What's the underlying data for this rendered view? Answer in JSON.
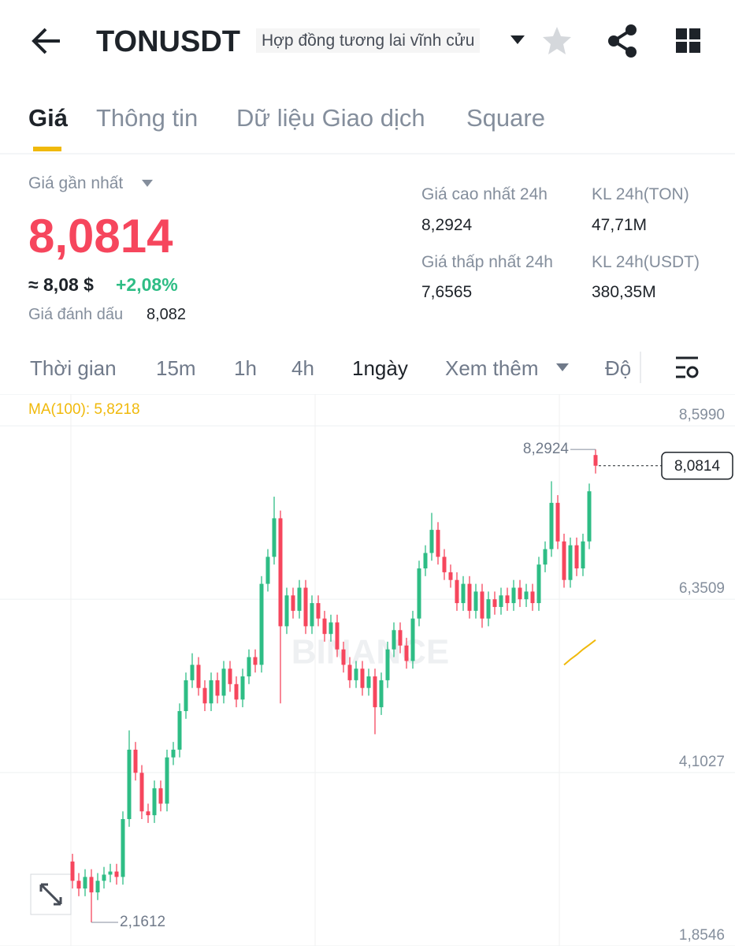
{
  "header": {
    "symbol": "TONUSDT",
    "contract_type": "Hợp đồng tương lai vĩnh cửu"
  },
  "tabs": [
    "Giá",
    "Thông tin",
    "Dữ liệu Giao dịch",
    "Square"
  ],
  "price": {
    "label": "Giá gần nhất",
    "last": "8,0814",
    "approx": "≈ 8,08 $",
    "change": "+2,08%",
    "mark_label": "Giá đánh dấu",
    "mark_value": "8,082"
  },
  "stats": [
    {
      "label": "Giá cao nhất 24h",
      "value": "8,2924"
    },
    {
      "label": "KL 24h(TON)",
      "value": "47,71M"
    },
    {
      "label": "Giá thấp nhất 24h",
      "value": "7,6565"
    },
    {
      "label": "KL 24h(USDT)",
      "value": "380,35M"
    }
  ],
  "timeframes": [
    "Thời gian",
    "15m",
    "1h",
    "4h",
    "1ngày",
    "Xem thêm",
    "Độ"
  ],
  "chart_data": {
    "type": "candlestick",
    "ma_label": "MA(100): 5,8218",
    "watermark": "BINANCE",
    "ylim": [
      1.8546,
      9.009
    ],
    "yticks": [
      {
        "value": 8.599,
        "label": "8,5990"
      },
      {
        "value": 6.3509,
        "label": "6,3509"
      },
      {
        "value": 4.1027,
        "label": "4,1027"
      },
      {
        "value": 1.8546,
        "label": "1,8546"
      }
    ],
    "grid": true,
    "up_color": "#2ebd85",
    "down_color": "#f6465d",
    "ma_color": "#f0b90b",
    "open": [
      2.95,
      2.7,
      2.6,
      2.75,
      2.55,
      2.7,
      2.78,
      2.82,
      2.75,
      3.5,
      4.4,
      4.1,
      3.6,
      3.55,
      3.9,
      3.7,
      4.3,
      4.4,
      4.9,
      5.3,
      5.5,
      5.2,
      5.0,
      5.3,
      5.1,
      5.45,
      5.25,
      5.05,
      5.35,
      5.6,
      5.5,
      6.55,
      6.9,
      7.4,
      6.0,
      6.4,
      6.2,
      6.5,
      6.0,
      6.3,
      6.1,
      5.9,
      6.05,
      5.7,
      5.5,
      5.3,
      5.45,
      5.2,
      5.35,
      4.95,
      5.3,
      5.7,
      5.95,
      5.75,
      5.55,
      6.1,
      6.75,
      6.95,
      7.25,
      6.9,
      6.7,
      6.6,
      6.3,
      6.55,
      6.2,
      6.45,
      6.1,
      6.35,
      6.25,
      6.4,
      6.3,
      6.5,
      6.35,
      6.45,
      6.3,
      6.8,
      7.0,
      7.6,
      7.1,
      6.6,
      7.05,
      6.75,
      7.1,
      8.22
    ],
    "high": [
      3.05,
      2.8,
      2.85,
      2.85,
      2.8,
      2.88,
      2.92,
      2.92,
      3.6,
      4.65,
      4.5,
      4.2,
      3.7,
      4.0,
      4.0,
      4.4,
      4.5,
      5.0,
      5.4,
      5.65,
      5.6,
      5.3,
      5.4,
      5.4,
      5.55,
      5.55,
      5.35,
      5.45,
      5.7,
      5.7,
      6.65,
      7.0,
      7.68,
      7.5,
      6.5,
      6.5,
      6.6,
      6.6,
      6.4,
      6.4,
      6.2,
      6.15,
      6.15,
      5.8,
      5.6,
      5.55,
      5.55,
      5.45,
      5.45,
      5.4,
      5.8,
      6.05,
      6.05,
      5.85,
      6.2,
      6.85,
      7.05,
      7.47,
      7.35,
      7.0,
      6.8,
      6.7,
      6.65,
      6.65,
      6.55,
      6.55,
      6.45,
      6.45,
      6.5,
      6.5,
      6.6,
      6.6,
      6.55,
      6.55,
      6.9,
      7.1,
      7.88,
      7.7,
      7.2,
      7.15,
      7.15,
      7.2,
      7.85,
      8.2924
    ],
    "low": [
      2.6,
      2.5,
      2.5,
      2.1612,
      2.45,
      2.6,
      2.68,
      2.65,
      2.65,
      3.4,
      4.0,
      3.5,
      3.45,
      3.45,
      3.6,
      3.6,
      4.2,
      4.3,
      4.8,
      5.2,
      5.1,
      4.9,
      4.9,
      5.0,
      5.0,
      5.15,
      4.95,
      4.95,
      5.25,
      5.4,
      5.4,
      6.45,
      6.8,
      5.0,
      5.9,
      6.1,
      6.1,
      5.9,
      5.9,
      6.0,
      5.8,
      5.8,
      5.6,
      5.4,
      5.2,
      5.2,
      5.1,
      5.1,
      4.6,
      4.85,
      5.2,
      5.6,
      5.65,
      5.45,
      5.45,
      6.0,
      6.65,
      6.85,
      6.8,
      6.6,
      6.5,
      6.2,
      6.2,
      6.1,
      6.1,
      5.98,
      6.0,
      6.15,
      6.15,
      6.2,
      6.2,
      6.25,
      6.25,
      6.2,
      6.2,
      6.7,
      6.9,
      7.0,
      6.5,
      6.5,
      6.65,
      6.65,
      7.0,
      7.98
    ],
    "close": [
      2.7,
      2.6,
      2.75,
      2.55,
      2.7,
      2.78,
      2.82,
      2.75,
      3.5,
      4.4,
      4.1,
      3.6,
      3.55,
      3.9,
      3.7,
      4.3,
      4.4,
      4.9,
      5.3,
      5.5,
      5.2,
      5.0,
      5.3,
      5.1,
      5.45,
      5.25,
      5.05,
      5.35,
      5.6,
      5.5,
      6.55,
      6.9,
      7.4,
      6.0,
      6.4,
      6.2,
      6.5,
      6.0,
      6.3,
      6.1,
      5.9,
      6.05,
      5.7,
      5.5,
      5.3,
      5.45,
      5.2,
      5.35,
      4.95,
      5.3,
      5.7,
      5.95,
      5.75,
      5.55,
      6.1,
      6.75,
      6.95,
      7.25,
      6.9,
      6.7,
      6.6,
      6.3,
      6.55,
      6.2,
      6.45,
      6.1,
      6.35,
      6.25,
      6.4,
      6.3,
      6.5,
      6.35,
      6.45,
      6.3,
      6.8,
      7.0,
      7.6,
      7.1,
      6.6,
      7.05,
      6.75,
      7.1,
      7.75,
      8.0814
    ],
    "ma": [
      null,
      null,
      null,
      null,
      null,
      null,
      null,
      null,
      null,
      null,
      null,
      null,
      null,
      null,
      null,
      null,
      null,
      null,
      null,
      null,
      null,
      null,
      null,
      null,
      null,
      null,
      null,
      null,
      null,
      null,
      null,
      null,
      null,
      null,
      null,
      null,
      null,
      null,
      null,
      null,
      null,
      null,
      null,
      null,
      null,
      null,
      null,
      null,
      null,
      null,
      null,
      null,
      null,
      null,
      null,
      null,
      null,
      null,
      null,
      null,
      null,
      null,
      null,
      null,
      null,
      null,
      null,
      null,
      null,
      null,
      null,
      null,
      null,
      null,
      null,
      null,
      null,
      null,
      5.5,
      5.57,
      5.63,
      5.7,
      5.76,
      5.8218
    ],
    "annotations": {
      "high": "8,2924",
      "low": "2,1612",
      "last": "8,0814"
    }
  }
}
